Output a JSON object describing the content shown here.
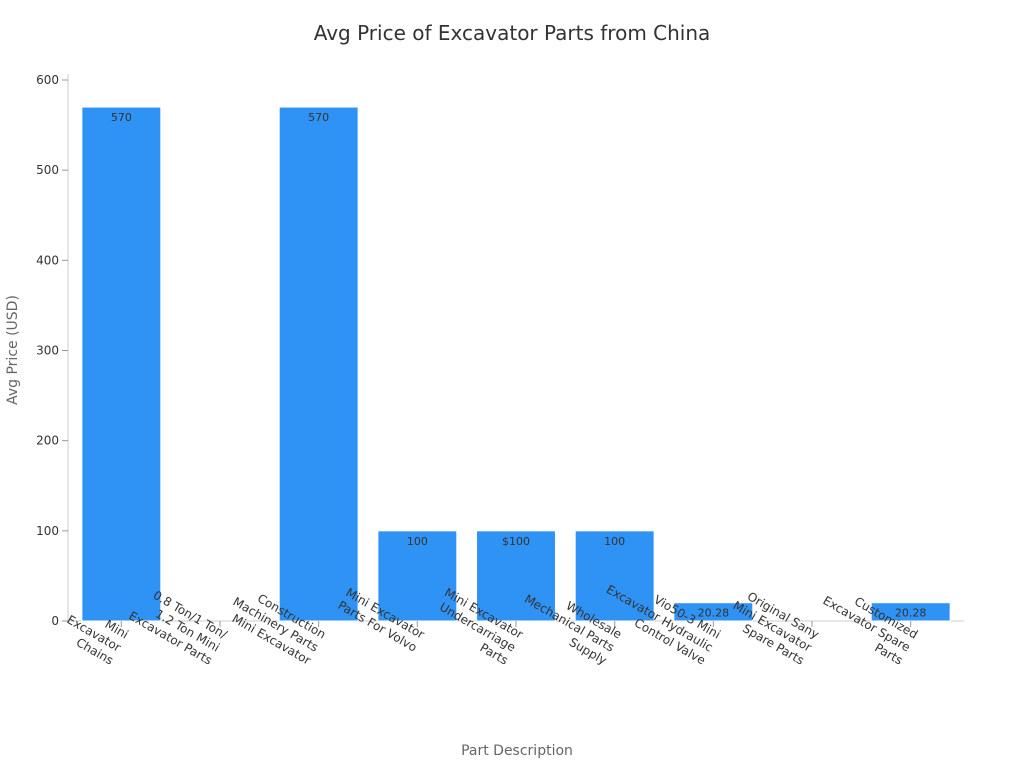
{
  "chart_data": {
    "type": "bar",
    "title": "Avg Price of Excavator Parts from China",
    "xlabel": "Part Description",
    "ylabel": "Avg Price (USD)",
    "ylim": [
      0,
      600
    ],
    "yticks": [
      "0",
      "100",
      "200",
      "300",
      "400",
      "500",
      "600"
    ],
    "grid": false,
    "bar_color": "#2f93f5",
    "categories": [
      [
        "Mini",
        "Excavator",
        "Chains"
      ],
      [
        "0.8 Ton/1 Ton/",
        "1.2 Ton Mini",
        "Excavator Parts"
      ],
      [
        "Construction",
        "Machinery Parts",
        "Mini Excavator"
      ],
      [
        "Mini Excavator",
        "Parts For Volvo"
      ],
      [
        "Mini Excavator",
        "Undercarriage",
        "Parts"
      ],
      [
        "Wholesale",
        "Mechanical Parts",
        "Supply"
      ],
      [
        "Vio50-3 Mini",
        "Excavator Hydraulic",
        "Control Valve"
      ],
      [
        "Original Sany",
        "Mini Excavator",
        "Spare Parts"
      ],
      [
        "Customized",
        "Excavator Spare",
        "Parts"
      ]
    ],
    "values": [
      570,
      null,
      570,
      100,
      100,
      100,
      20.28,
      null,
      20.28
    ],
    "data_labels": [
      "570",
      "",
      "570",
      "100",
      "$100",
      "100",
      "20.28",
      "",
      "20.28"
    ]
  }
}
